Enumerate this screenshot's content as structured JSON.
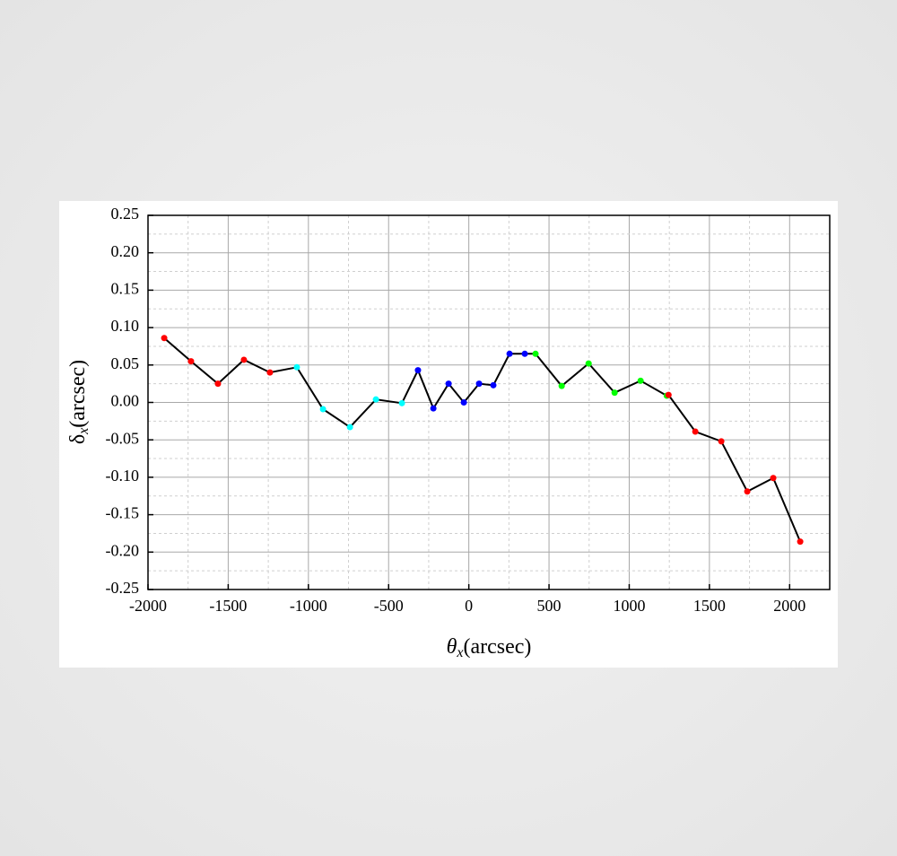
{
  "chart_data": {
    "type": "line",
    "xlabel_symbol": "θ",
    "xlabel_sub": "x",
    "xlabel_unit": "(arcsec)",
    "ylabel_symbol": "δ",
    "ylabel_sub": "x",
    "ylabel_unit": "(arcsec)",
    "x": [
      -1899,
      -1732,
      -1564,
      -1402,
      -1240,
      -1072,
      -909,
      -741,
      -579,
      -417,
      -317,
      -221,
      -126,
      -31,
      64,
      153,
      254,
      349,
      416,
      579,
      747,
      909,
      1071,
      1234,
      1245,
      1412,
      1574,
      1736,
      1898,
      2066
    ],
    "series": [
      {
        "color": "#000000",
        "values": [
          0.086,
          0.055,
          0.025,
          0.057,
          0.04,
          0.047,
          -0.009,
          -0.033,
          0.004,
          -0.001,
          0.043,
          -0.008,
          0.025,
          0.0,
          0.025,
          0.023,
          0.065,
          0.065,
          0.065,
          0.022,
          0.052,
          0.013,
          0.029,
          0.009,
          0.01,
          -0.039,
          -0.052,
          -0.119,
          -0.101,
          -0.186
        ],
        "marker_colors": [
          "#ff0000",
          "#ff0000",
          "#ff0000",
          "#ff0000",
          "#ff0000",
          "#00ffff",
          "#00ffff",
          "#00ffff",
          "#00ffff",
          "#00ffff",
          "#0000ff",
          "#0000ff",
          "#0000ff",
          "#0000ff",
          "#0000ff",
          "#0000ff",
          "#0000ff",
          "#0000ff",
          "#00ff00",
          "#00ff00",
          "#00ff00",
          "#00ff00",
          "#00ff00",
          "#00ff00",
          "#ff0000",
          "#ff0000",
          "#ff0000",
          "#ff0000",
          "#ff0000",
          "#ff0000"
        ]
      }
    ],
    "xlim": [
      -2000,
      2250
    ],
    "xticks": [
      -2000,
      -1500,
      -1000,
      -500,
      0,
      500,
      1000,
      1500,
      2000
    ],
    "ylim": [
      -0.25,
      0.25
    ],
    "yticks": [
      {
        "value": -0.25,
        "label": "-0.25"
      },
      {
        "value": -0.2,
        "label": "-0.20"
      },
      {
        "value": -0.15,
        "label": "-0.15"
      },
      {
        "value": -0.1,
        "label": "-0.10"
      },
      {
        "value": -0.05,
        "label": "-0.05"
      },
      {
        "value": 0,
        "label": "0.00"
      },
      {
        "value": 0.05,
        "label": "0.05"
      },
      {
        "value": 0.1,
        "label": "0.10"
      },
      {
        "value": 0.15,
        "label": "0.15"
      },
      {
        "value": 0.2,
        "label": "0.20"
      },
      {
        "value": 0.25,
        "label": "0.25"
      }
    ],
    "grid": true,
    "minor_grid": true
  }
}
